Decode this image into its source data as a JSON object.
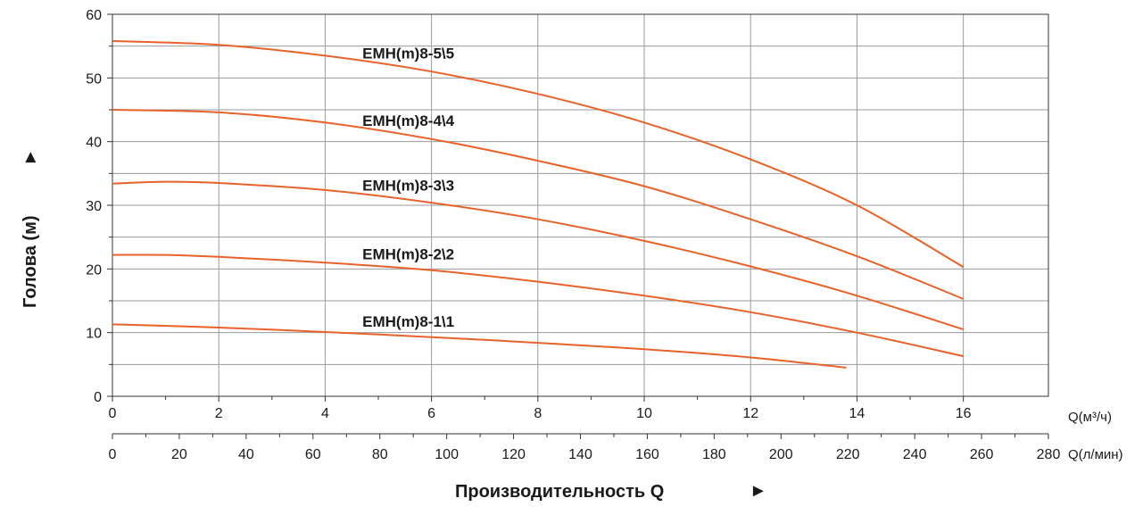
{
  "chart_data": {
    "type": "line",
    "title": "",
    "ylabel": "Голова (м)",
    "xlabel": "Производительность Q",
    "arrow_glyph": "►",
    "ylim": [
      0,
      60
    ],
    "y_ticks": [
      0,
      10,
      20,
      30,
      40,
      50,
      60
    ],
    "xlim": [
      0,
      17.6
    ],
    "x_ticks": [
      0,
      2,
      4,
      6,
      8,
      10,
      12,
      14,
      16
    ],
    "x_unit_label": "Q(м³/ч)",
    "x2_ticks": [
      0,
      20,
      40,
      60,
      80,
      100,
      120,
      140,
      160,
      180,
      200,
      220,
      240,
      260,
      280
    ],
    "x2_lim": [
      0,
      280
    ],
    "x2_unit_label": "Q(л/мин)",
    "grid": true,
    "line_color": "#e8622a",
    "series": [
      {
        "name": "EMH(m)8-5\\5",
        "x": [
          0,
          2,
          4,
          6,
          8,
          10,
          12,
          14,
          16
        ],
        "y": [
          55.8,
          55.2,
          53.5,
          51.0,
          47.5,
          43.0,
          37.2,
          30.0,
          20.3
        ]
      },
      {
        "name": "EMH(m)8-4\\4",
        "x": [
          0,
          2,
          4,
          6,
          8,
          10,
          12,
          14,
          16
        ],
        "y": [
          45.0,
          44.6,
          43.0,
          40.4,
          37.0,
          33.0,
          27.8,
          22.0,
          15.3
        ]
      },
      {
        "name": "EMH(m)8-3\\3",
        "x": [
          0,
          1,
          2,
          4,
          6,
          8,
          10,
          12,
          14,
          16
        ],
        "y": [
          33.4,
          33.7,
          33.5,
          32.4,
          30.4,
          27.8,
          24.4,
          20.4,
          15.8,
          10.5
        ]
      },
      {
        "name": "EMH(m)8-2\\2",
        "x": [
          0,
          1,
          2,
          4,
          6,
          8,
          10,
          12,
          14,
          16
        ],
        "y": [
          22.2,
          22.2,
          21.9,
          21.0,
          19.8,
          18.0,
          15.8,
          13.2,
          10.0,
          6.3
        ]
      },
      {
        "name": "EMH(m)8-1\\1",
        "x": [
          0,
          2,
          4,
          6,
          8,
          10,
          12,
          13.8
        ],
        "y": [
          11.3,
          10.8,
          10.1,
          9.3,
          8.4,
          7.4,
          6.1,
          4.5
        ]
      }
    ]
  }
}
